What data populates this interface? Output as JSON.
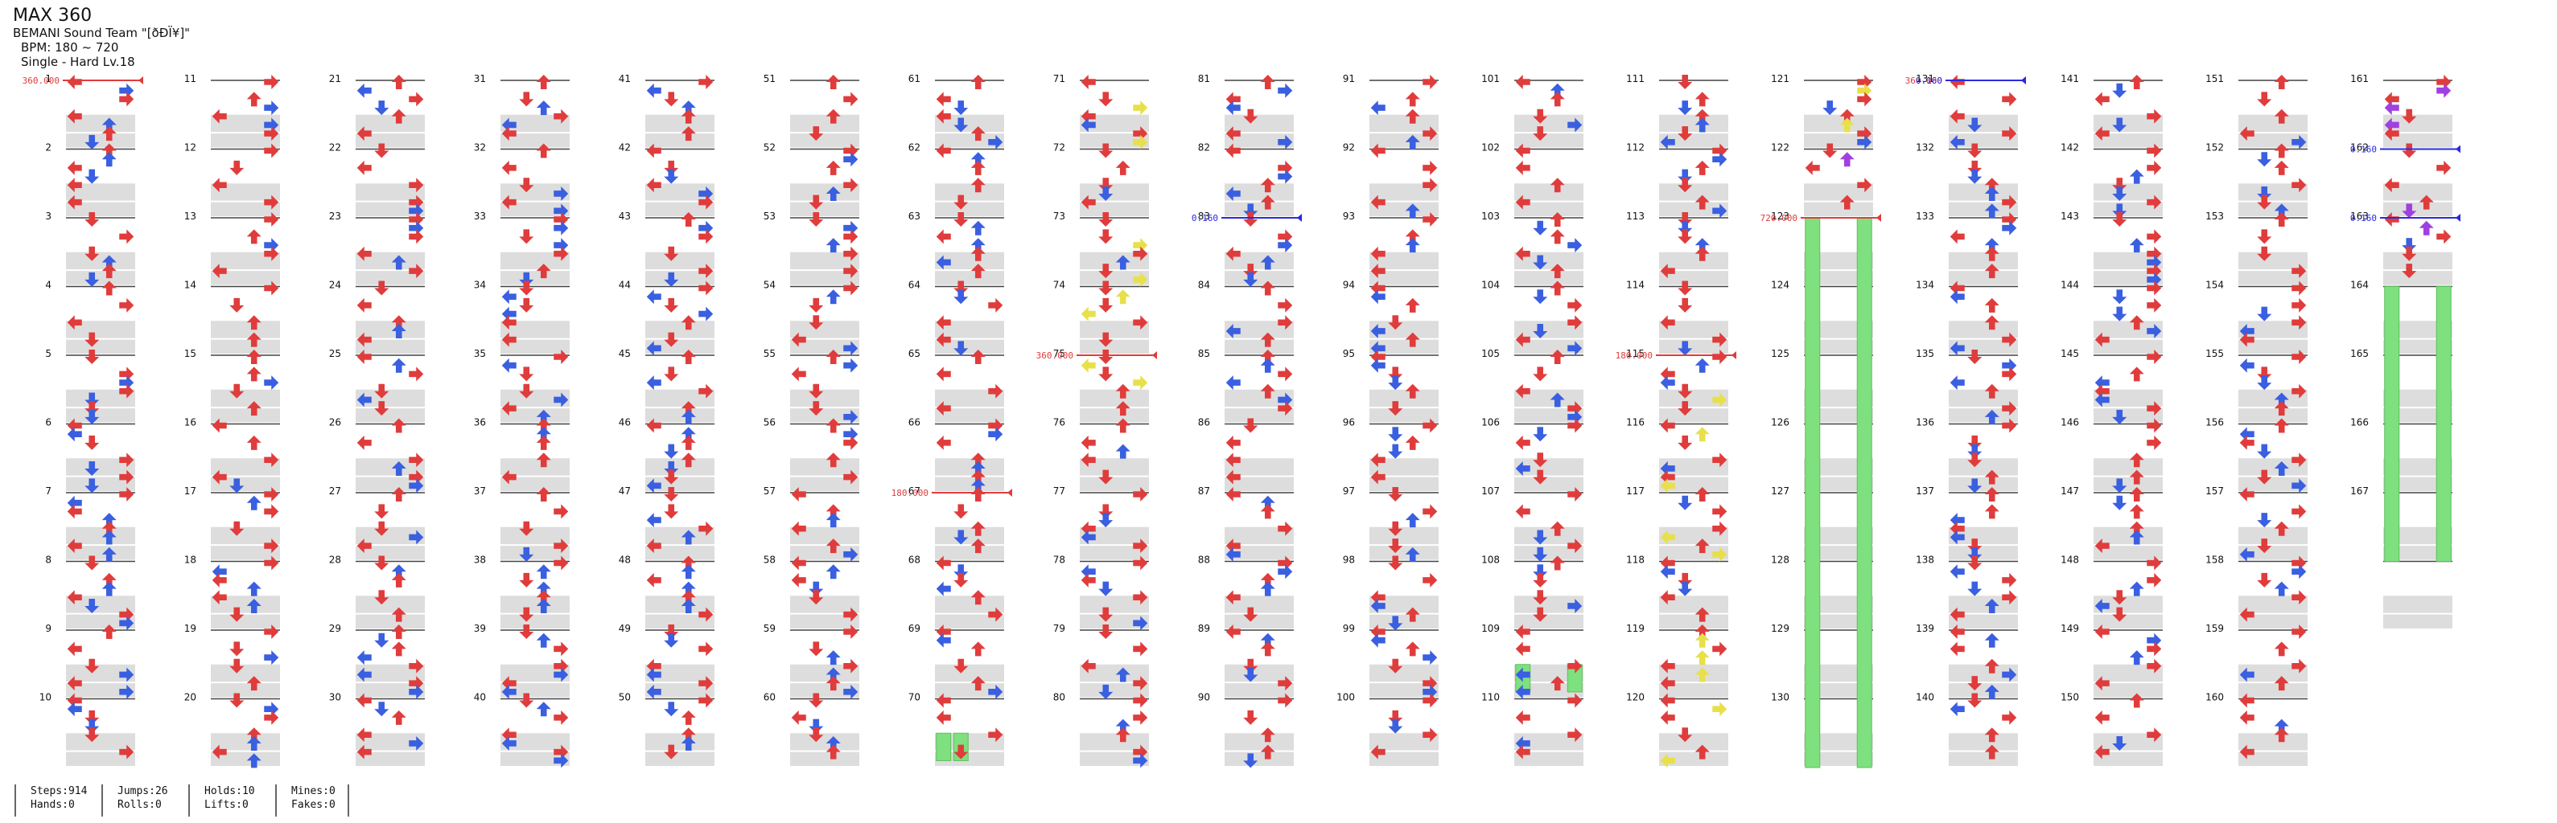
{
  "song": {
    "title": "MAX 360",
    "artist": "BEMANI Sound Team \"[ðÐÏ¥]\"",
    "bpm_label": "BPM: 180 ~ 720",
    "difficulty": "Single - Hard  Lv.18"
  },
  "layout_info": {
    "total_measures": 167,
    "measures_per_column": 10
  },
  "colors": {
    "quarter_note": "#e03c3c",
    "eighth_note": "#3a5fe0",
    "sixteenth_note": "#e8e04a",
    "other_note": "#a040e0",
    "hold": "#7ee07e",
    "bpm_marker": "#e03c3c",
    "speed_marker": "#2a2ae0",
    "measure_shade": "#dddddd"
  },
  "events": [
    {
      "measure": 1,
      "label": "360.000",
      "kind": "bpm"
    },
    {
      "measure": 67,
      "label": "180.000",
      "kind": "bpm"
    },
    {
      "measure": 75,
      "label": "360.000",
      "kind": "bpm"
    },
    {
      "measure": 83,
      "label": "0.160",
      "kind": "speed"
    },
    {
      "measure": 115,
      "label": "180.000",
      "kind": "bpm"
    },
    {
      "measure": 123,
      "label": "720.000",
      "kind": "bpm"
    },
    {
      "measure": 131,
      "label": "360.000",
      "kind": "bpm"
    },
    {
      "measure": 131,
      "label": "0.160",
      "kind": "speed"
    },
    {
      "measure": 162,
      "label": "0.160",
      "kind": "speed"
    },
    {
      "measure": 163,
      "label": "0.160",
      "kind": "speed"
    }
  ],
  "holds": [
    {
      "measure": 70,
      "lanes": [
        0,
        1
      ]
    },
    {
      "measure": 109,
      "lanes": [
        0,
        3
      ]
    },
    {
      "measure": 123,
      "lanes": [
        0,
        3
      ],
      "to_measure": 131
    },
    {
      "measure": 164,
      "lanes": [
        0,
        3
      ],
      "to_measure": 168
    }
  ],
  "stats": {
    "steps": "Steps:914",
    "jumps": "Jumps:26",
    "holds": "Holds:10",
    "mines": "Mines:0",
    "hands": "Hands:0",
    "rolls": "Rolls:0",
    "lifts": "Lifts:0",
    "fakes": "Fakes:0"
  }
}
